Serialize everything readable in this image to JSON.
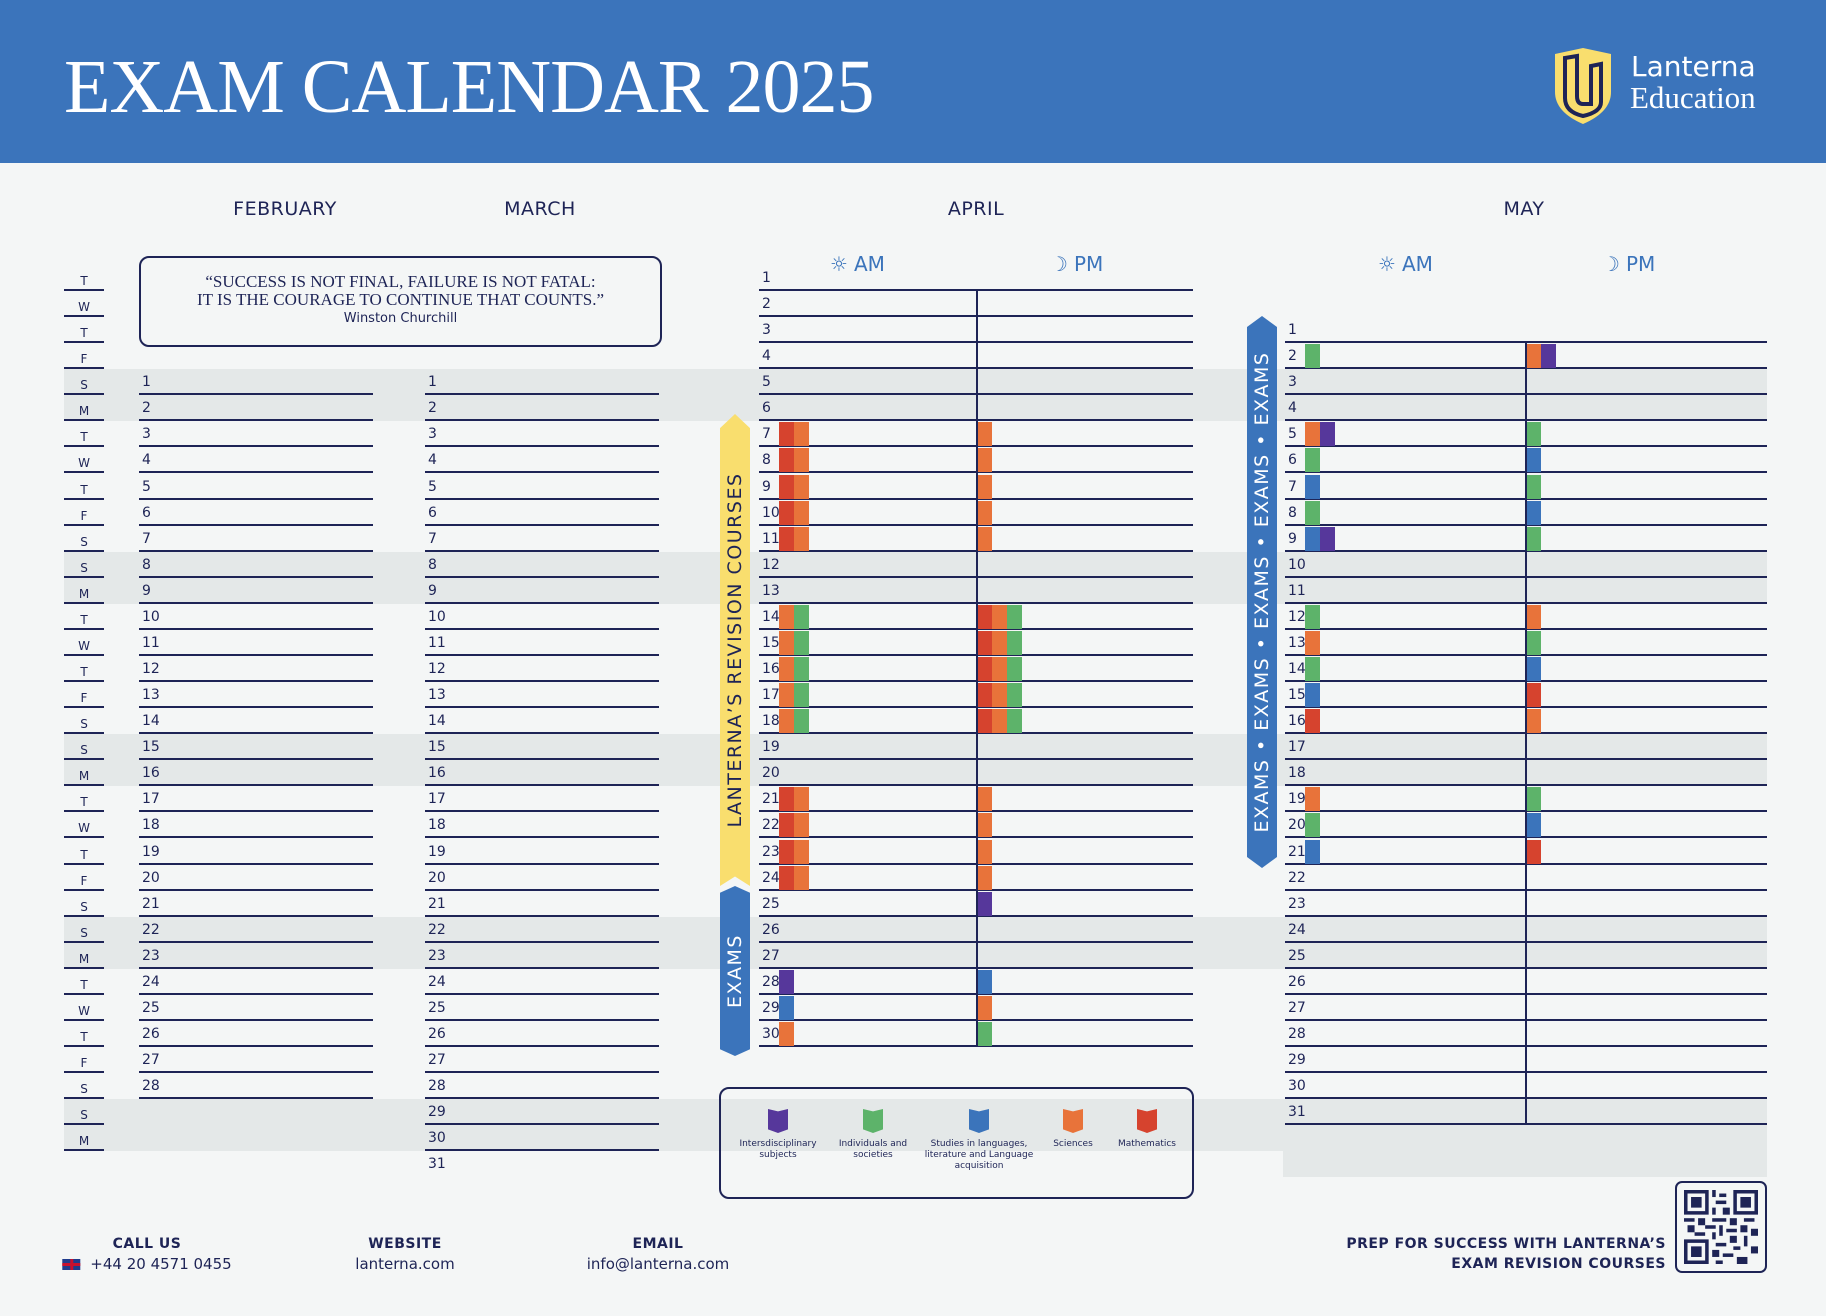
{
  "header": {
    "title": "EXAM CALENDAR 2025",
    "brand_line1": "Lanterna",
    "brand_line2": "Education",
    "background_color": "#3b74bb"
  },
  "months": {
    "february": "FEBRUARY",
    "march": "MARCH",
    "april": "APRIL",
    "may": "MAY"
  },
  "session_labels": {
    "am": "AM",
    "pm": "PM",
    "am_icon": "sun-icon",
    "pm_icon": "moon-icon"
  },
  "weekday_labels": [
    "T",
    "W",
    "T",
    "F",
    "S",
    "M",
    "T",
    "W",
    "T",
    "F",
    "S",
    "S",
    "M",
    "T",
    "W",
    "T",
    "F",
    "S",
    "S",
    "M",
    "T",
    "W",
    "T",
    "F",
    "S",
    "S",
    "M",
    "T",
    "W",
    "T",
    "F",
    "S",
    "S",
    "M"
  ],
  "quote": {
    "line1": "“SUCCESS IS NOT FINAL, FAILURE IS NOT FATAL:",
    "line2": "IT IS THE COURAGE TO CONTINUE THAT COUNTS.”",
    "author": "Winston Churchill"
  },
  "ribbons": {
    "revision": "LANTERNA’S REVISION COURSES",
    "april_exams": "EXAMS",
    "may_exams": "EXAMS • EXAMS • EXAMS • EXAMS • EXAMS"
  },
  "colors": {
    "interdisciplinary": "#56379b",
    "individuals": "#5db36a",
    "languages": "#3b74bb",
    "sciences": "#e8733a",
    "mathematics": "#d6432e",
    "ribbon_yellow": "#f9de6e",
    "ink": "#1e2456"
  },
  "legend": [
    {
      "key": "interdisciplinary",
      "label": "Intersdisciplinary subjects"
    },
    {
      "key": "individuals",
      "label": "Individuals and societies"
    },
    {
      "key": "languages",
      "label": "Studies in languages, literature and Language acquisition"
    },
    {
      "key": "sciences",
      "label": "Sciences"
    },
    {
      "key": "mathematics",
      "label": "Mathematics"
    }
  ],
  "april_schedule": {
    "7": {
      "am": [
        "mathematics",
        "sciences"
      ],
      "pm": [
        "sciences"
      ]
    },
    "8": {
      "am": [
        "mathematics",
        "sciences"
      ],
      "pm": [
        "sciences"
      ]
    },
    "9": {
      "am": [
        "mathematics",
        "sciences"
      ],
      "pm": [
        "sciences"
      ]
    },
    "10": {
      "am": [
        "mathematics",
        "sciences"
      ],
      "pm": [
        "sciences"
      ]
    },
    "11": {
      "am": [
        "mathematics",
        "sciences"
      ],
      "pm": [
        "sciences"
      ]
    },
    "14": {
      "am": [
        "sciences",
        "individuals"
      ],
      "pm": [
        "mathematics",
        "sciences",
        "individuals"
      ]
    },
    "15": {
      "am": [
        "sciences",
        "individuals"
      ],
      "pm": [
        "mathematics",
        "sciences",
        "individuals"
      ]
    },
    "16": {
      "am": [
        "sciences",
        "individuals"
      ],
      "pm": [
        "mathematics",
        "sciences",
        "individuals"
      ]
    },
    "17": {
      "am": [
        "sciences",
        "individuals"
      ],
      "pm": [
        "mathematics",
        "sciences",
        "individuals"
      ]
    },
    "18": {
      "am": [
        "sciences",
        "individuals"
      ],
      "pm": [
        "mathematics",
        "sciences",
        "individuals"
      ]
    },
    "21": {
      "am": [
        "mathematics",
        "sciences"
      ],
      "pm": [
        "sciences"
      ]
    },
    "22": {
      "am": [
        "mathematics",
        "sciences"
      ],
      "pm": [
        "sciences"
      ]
    },
    "23": {
      "am": [
        "mathematics",
        "sciences"
      ],
      "pm": [
        "sciences"
      ]
    },
    "24": {
      "am": [
        "mathematics",
        "sciences"
      ],
      "pm": [
        "sciences"
      ]
    },
    "25": {
      "am": [],
      "pm": [
        "interdisciplinary"
      ]
    },
    "28": {
      "am": [
        "interdisciplinary"
      ],
      "pm": [
        "languages"
      ]
    },
    "29": {
      "am": [
        "languages"
      ],
      "pm": [
        "sciences"
      ]
    },
    "30": {
      "am": [
        "sciences"
      ],
      "pm": [
        "individuals"
      ]
    }
  },
  "may_schedule": {
    "2": {
      "am": [
        "individuals"
      ],
      "pm": [
        "sciences",
        "interdisciplinary"
      ]
    },
    "5": {
      "am": [
        "sciences",
        "interdisciplinary"
      ],
      "pm": [
        "individuals"
      ]
    },
    "6": {
      "am": [
        "individuals"
      ],
      "pm": [
        "languages"
      ]
    },
    "7": {
      "am": [
        "languages"
      ],
      "pm": [
        "individuals"
      ]
    },
    "8": {
      "am": [
        "individuals"
      ],
      "pm": [
        "languages"
      ]
    },
    "9": {
      "am": [
        "languages",
        "interdisciplinary"
      ],
      "pm": [
        "individuals"
      ]
    },
    "12": {
      "am": [
        "individuals"
      ],
      "pm": [
        "sciences"
      ]
    },
    "13": {
      "am": [
        "sciences"
      ],
      "pm": [
        "individuals"
      ]
    },
    "14": {
      "am": [
        "individuals"
      ],
      "pm": [
        "languages"
      ]
    },
    "15": {
      "am": [
        "languages"
      ],
      "pm": [
        "mathematics"
      ]
    },
    "16": {
      "am": [
        "mathematics"
      ],
      "pm": [
        "sciences"
      ]
    },
    "19": {
      "am": [
        "sciences"
      ],
      "pm": [
        "individuals"
      ]
    },
    "20": {
      "am": [
        "individuals"
      ],
      "pm": [
        "languages"
      ]
    },
    "21": {
      "am": [
        "languages"
      ],
      "pm": [
        "mathematics"
      ]
    }
  },
  "footer": {
    "call_label": "CALL US",
    "phone": "+44 20 4571 0455",
    "website_label": "WEBSITE",
    "website": "lanterna.com",
    "email_label": "EMAIL",
    "email": "info@lanterna.com",
    "promo_line1": "PREP FOR SUCCESS WITH LANTERNA’S",
    "promo_line2": "EXAM REVISION COURSES"
  }
}
